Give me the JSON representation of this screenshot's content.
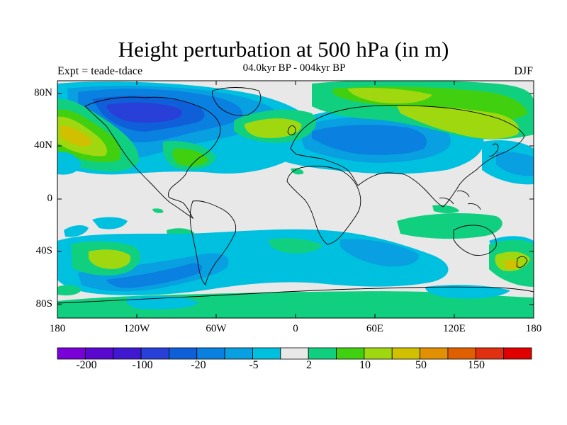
{
  "title": "Height perturbation at 500 hPa (in m)",
  "experiment_label": "Expt = teade-tdace",
  "subtitle": "04.0kyr BP - 004kyr BP",
  "season": "DJF",
  "lat_ticks": [
    "80N",
    "40N",
    "0",
    "40S",
    "80S"
  ],
  "lon_ticks": [
    "180",
    "120W",
    "60W",
    "0",
    "60E",
    "120E",
    "180"
  ],
  "colorbar": {
    "colors": [
      "#7a00d8",
      "#5a08d0",
      "#4018d0",
      "#2840d8",
      "#0f60d8",
      "#0a80e0",
      "#08a0e0",
      "#00c0e0",
      "#e8e8e8",
      "#10d080",
      "#40d010",
      "#a0d810",
      "#d0c000",
      "#e09000",
      "#e06000",
      "#e03010",
      "#e00000"
    ],
    "labels": [
      "-200",
      "-100",
      "-20",
      "-5",
      "2",
      "10",
      "50",
      "150"
    ]
  },
  "map_colors": {
    "ocean_neutral": "#e8e8e8",
    "neg_light": "#00c0e0",
    "neg_mid": "#08a0e0",
    "neg_deep": "#0a80e0",
    "neg_darker": "#0f60d8",
    "neg_darkest": "#2840d8",
    "pos_light": "#10d080",
    "pos_mid": "#40d010",
    "pos_yellowgreen": "#a0d810",
    "pos_yellow": "#d0c000",
    "coast": "#000000"
  }
}
